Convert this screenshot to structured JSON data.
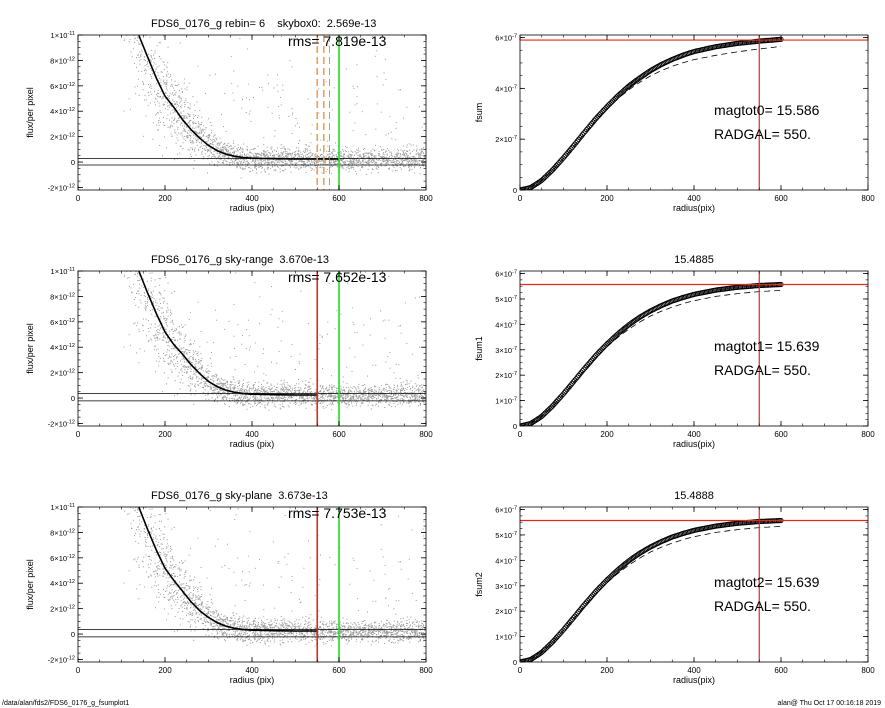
{
  "colors": {
    "scatter": "#9a9a9a",
    "profile": "#000000",
    "curve": "#000000",
    "marker_red": "#e0271d",
    "marker_green": "#22dd22",
    "marker_orange": "#f0a050",
    "marker_gray": "#8c8c8c"
  },
  "footer": {
    "left": "/data/alan/fds2/FDS6_0176_g_fsumplot1",
    "right": "alan@  Thu Oct 17 00:16:18 2019"
  },
  "chart_data": [
    {
      "type": "scatter",
      "title": "FDS6_0176_g rebin= 6    skybox0:  2.569e-13",
      "annotations": [
        "rms= 7.819e-13"
      ],
      "xlabel": "radius (pix)",
      "ylabel": "flux/per pixel",
      "xlim": [
        0,
        800
      ],
      "ylim": [
        -2.2e-12,
        1e-11
      ],
      "xticks": [
        0,
        200,
        400,
        600,
        800
      ],
      "xtick_labels": [
        "0",
        "200",
        "400",
        "600",
        "800"
      ],
      "yticks": [
        -2e-12,
        0,
        2e-12,
        4e-12,
        6e-12,
        8e-12,
        1e-11
      ],
      "ytick_labels": [
        [
          "-2×10",
          "-12"
        ],
        [
          "0",
          ""
        ],
        [
          "2×10",
          "-12"
        ],
        [
          "4×10",
          "-12"
        ],
        [
          "6×10",
          "-12"
        ],
        [
          "8×10",
          "-12"
        ],
        [
          "1×10",
          "-11"
        ]
      ],
      "hlines": [
        2.8e-13,
        -2.3e-13
      ],
      "vlines": [
        {
          "x": 550,
          "color": "marker_orange",
          "dash": true
        },
        {
          "x": 565,
          "color": "marker_orange",
          "dash": true
        },
        {
          "x": 578,
          "color": "marker_gray",
          "dash": true
        },
        {
          "x": 600,
          "color": "marker_green",
          "dash": false
        }
      ],
      "profile": {
        "x": [
          140,
          160,
          180,
          200,
          220,
          240,
          260,
          280,
          300,
          320,
          340,
          360,
          380,
          400,
          450,
          500,
          550,
          600
        ],
        "y": [
          1e-11,
          8.2e-12,
          6.6e-12,
          5.2e-12,
          4.3e-12,
          3.4e-12,
          2.6e-12,
          1.9e-12,
          1.3e-12,
          9e-13,
          6.2e-13,
          4.5e-13,
          3.5e-13,
          3e-13,
          2.6e-13,
          2.4e-13,
          2.4e-13,
          2.4e-13
        ]
      },
      "grid": false,
      "legend": "none"
    },
    {
      "type": "line",
      "title": "",
      "annotations": [
        "magtot0=  15.586",
        "RADGAL=    550."
      ],
      "xlabel": "radius(pix)",
      "ylabel": "fsum",
      "xlim": [
        0,
        800
      ],
      "ylim": [
        0,
        6.1e-07
      ],
      "xticks": [
        0,
        200,
        400,
        600,
        800
      ],
      "xtick_labels": [
        "0",
        "200",
        "400",
        "600",
        "800"
      ],
      "yticks": [
        0,
        2e-07,
        4e-07,
        6e-07
      ],
      "ytick_labels": [
        [
          "0",
          ""
        ],
        [
          "2×10",
          "-7"
        ],
        [
          "4×10",
          "-7"
        ],
        [
          "6×10",
          "-7"
        ]
      ],
      "asymptote": 5.9e-07,
      "hline": 5.9e-07,
      "vline": 550,
      "x": [
        0,
        25,
        50,
        75,
        100,
        125,
        150,
        175,
        200,
        225,
        250,
        275,
        300,
        325,
        350,
        375,
        400,
        450,
        500,
        550,
        600
      ],
      "y": [
        0,
        1e-08,
        3.8e-08,
        7.9e-08,
        1.27e-07,
        1.78e-07,
        2.31e-07,
        2.82e-07,
        3.28e-07,
        3.71e-07,
        4.09e-07,
        4.41e-07,
        4.7e-07,
        4.94e-07,
        5.14e-07,
        5.31e-07,
        5.45e-07,
        5.64e-07,
        5.77e-07,
        5.86e-07,
        5.93e-07
      ],
      "dashed_y": [
        0,
        1e-08,
        3.8e-08,
        7.8e-08,
        1.25e-07,
        1.75e-07,
        2.26e-07,
        2.75e-07,
        3.19e-07,
        3.59e-07,
        3.94e-07,
        4.24e-07,
        4.49e-07,
        4.7e-07,
        4.87e-07,
        5.01e-07,
        5.13e-07,
        5.3e-07,
        5.44e-07,
        5.55e-07,
        5.65e-07
      ],
      "grid": false,
      "legend": "none"
    },
    {
      "type": "scatter",
      "title": "FDS6_0176_g sky-range  3.670e-13",
      "annotations": [
        "rms= 7.652e-13"
      ],
      "xlabel": "radius (pix)",
      "ylabel": "flux/per pixel",
      "xlim": [
        0,
        800
      ],
      "ylim": [
        -2.2e-12,
        1e-11
      ],
      "xticks": [
        0,
        200,
        400,
        600,
        800
      ],
      "xtick_labels": [
        "0",
        "200",
        "400",
        "600",
        "800"
      ],
      "yticks": [
        -2e-12,
        0,
        2e-12,
        4e-12,
        6e-12,
        8e-12,
        1e-11
      ],
      "ytick_labels": [
        [
          "-2×10",
          "-12"
        ],
        [
          "0",
          ""
        ],
        [
          "2×10",
          "-12"
        ],
        [
          "4×10",
          "-12"
        ],
        [
          "6×10",
          "-12"
        ],
        [
          "8×10",
          "-12"
        ],
        [
          "1×10",
          "-11"
        ]
      ],
      "hlines": [
        3.7e-13,
        -2.2e-13
      ],
      "vlines": [
        {
          "x": 550,
          "color": "marker_red",
          "dash": false
        },
        {
          "x": 600,
          "color": "marker_green",
          "dash": false
        }
      ],
      "profile": {
        "x": [
          140,
          160,
          180,
          200,
          220,
          240,
          260,
          280,
          300,
          320,
          340,
          360,
          380,
          400,
          450,
          500,
          550
        ],
        "y": [
          1e-11,
          8.2e-12,
          6.6e-12,
          5.2e-12,
          4.3e-12,
          3.4e-12,
          2.6e-12,
          1.9e-12,
          1.3e-12,
          9e-13,
          6.2e-13,
          4.5e-13,
          3.5e-13,
          3e-13,
          2.6e-13,
          2.4e-13,
          2.4e-13
        ]
      },
      "grid": false,
      "legend": "none"
    },
    {
      "type": "line",
      "title": "15.4885",
      "annotations": [
        "magtot1=  15.639",
        "RADGAL=    550."
      ],
      "xlabel": "radius(pix)",
      "ylabel": "fsum1",
      "xlim": [
        0,
        800
      ],
      "ylim": [
        0,
        6.1e-07
      ],
      "xticks": [
        0,
        200,
        400,
        600,
        800
      ],
      "xtick_labels": [
        "0",
        "200",
        "400",
        "600",
        "800"
      ],
      "yticks": [
        0,
        1e-07,
        2e-07,
        3e-07,
        4e-07,
        5e-07,
        6e-07
      ],
      "ytick_labels": [
        [
          "0",
          ""
        ],
        [
          "1×10",
          "-7"
        ],
        [
          "2×10",
          "-7"
        ],
        [
          "3×10",
          "-7"
        ],
        [
          "4×10",
          "-7"
        ],
        [
          "5×10",
          "-7"
        ],
        [
          "6×10",
          "-7"
        ]
      ],
      "asymptote": 5.57e-07,
      "hline": 5.57e-07,
      "vline": 550,
      "x": [
        0,
        25,
        50,
        75,
        100,
        125,
        150,
        175,
        200,
        225,
        250,
        275,
        300,
        325,
        350,
        375,
        400,
        450,
        500,
        550,
        600
      ],
      "y": [
        0,
        1e-08,
        3.8e-08,
        7.9e-08,
        1.27e-07,
        1.78e-07,
        2.3e-07,
        2.79e-07,
        3.23e-07,
        3.63e-07,
        3.98e-07,
        4.28e-07,
        4.53e-07,
        4.74e-07,
        4.92e-07,
        5.06e-07,
        5.18e-07,
        5.35e-07,
        5.46e-07,
        5.53e-07,
        5.57e-07
      ],
      "dashed_y": [
        0,
        1e-08,
        3.8e-08,
        7.8e-08,
        1.25e-07,
        1.74e-07,
        2.24e-07,
        2.7e-07,
        3.12e-07,
        3.49e-07,
        3.81e-07,
        4.09e-07,
        4.33e-07,
        4.52e-07,
        4.68e-07,
        4.82e-07,
        4.93e-07,
        5.1e-07,
        5.21e-07,
        5.29e-07,
        5.34e-07
      ],
      "grid": false,
      "legend": "none"
    },
    {
      "type": "scatter",
      "title": "FDS6_0176_g sky-plane  3.673e-13",
      "annotations": [
        "rms= 7.753e-13"
      ],
      "xlabel": "radius (pix)",
      "ylabel": "flux/per pixel",
      "xlim": [
        0,
        800
      ],
      "ylim": [
        -2.2e-12,
        1e-11
      ],
      "xticks": [
        0,
        200,
        400,
        600,
        800
      ],
      "xtick_labels": [
        "0",
        "200",
        "400",
        "600",
        "800"
      ],
      "yticks": [
        -2e-12,
        0,
        2e-12,
        4e-12,
        6e-12,
        8e-12,
        1e-11
      ],
      "ytick_labels": [
        [
          "-2×10",
          "-12"
        ],
        [
          "0",
          ""
        ],
        [
          "2×10",
          "-12"
        ],
        [
          "4×10",
          "-12"
        ],
        [
          "6×10",
          "-12"
        ],
        [
          "8×10",
          "-12"
        ],
        [
          "1×10",
          "-11"
        ]
      ],
      "hlines": [
        3.7e-13,
        -2.2e-13
      ],
      "vlines": [
        {
          "x": 550,
          "color": "marker_red",
          "dash": false
        },
        {
          "x": 600,
          "color": "marker_green",
          "dash": false
        }
      ],
      "profile": {
        "x": [
          140,
          160,
          180,
          200,
          220,
          240,
          260,
          280,
          300,
          320,
          340,
          360,
          380,
          400,
          450,
          500,
          550
        ],
        "y": [
          1e-11,
          8.2e-12,
          6.6e-12,
          5.2e-12,
          4.3e-12,
          3.4e-12,
          2.6e-12,
          1.9e-12,
          1.3e-12,
          9e-13,
          6.2e-13,
          4.5e-13,
          3.5e-13,
          3e-13,
          2.6e-13,
          2.4e-13,
          2.4e-13
        ]
      },
      "grid": false,
      "legend": "none"
    },
    {
      "type": "line",
      "title": "15.4888",
      "annotations": [
        "magtot2=  15.639",
        "RADGAL=    550."
      ],
      "xlabel": "radius(pix)",
      "ylabel": "fsum2",
      "xlim": [
        0,
        800
      ],
      "ylim": [
        0,
        6.1e-07
      ],
      "xticks": [
        0,
        200,
        400,
        600,
        800
      ],
      "xtick_labels": [
        "0",
        "200",
        "400",
        "600",
        "800"
      ],
      "yticks": [
        0,
        1e-07,
        2e-07,
        3e-07,
        4e-07,
        5e-07,
        6e-07
      ],
      "ytick_labels": [
        [
          "0",
          ""
        ],
        [
          "1×10",
          "-7"
        ],
        [
          "2×10",
          "-7"
        ],
        [
          "3×10",
          "-7"
        ],
        [
          "4×10",
          "-7"
        ],
        [
          "5×10",
          "-7"
        ],
        [
          "6×10",
          "-7"
        ]
      ],
      "asymptote": 5.57e-07,
      "hline": 5.57e-07,
      "vline": 550,
      "x": [
        0,
        25,
        50,
        75,
        100,
        125,
        150,
        175,
        200,
        225,
        250,
        275,
        300,
        325,
        350,
        375,
        400,
        450,
        500,
        550,
        600
      ],
      "y": [
        0,
        1e-08,
        3.8e-08,
        7.9e-08,
        1.27e-07,
        1.78e-07,
        2.3e-07,
        2.79e-07,
        3.23e-07,
        3.63e-07,
        3.98e-07,
        4.28e-07,
        4.53e-07,
        4.74e-07,
        4.92e-07,
        5.06e-07,
        5.18e-07,
        5.35e-07,
        5.46e-07,
        5.53e-07,
        5.57e-07
      ],
      "dashed_y": [
        0,
        1e-08,
        3.8e-08,
        7.8e-08,
        1.25e-07,
        1.74e-07,
        2.24e-07,
        2.7e-07,
        3.12e-07,
        3.49e-07,
        3.81e-07,
        4.09e-07,
        4.33e-07,
        4.52e-07,
        4.68e-07,
        4.82e-07,
        4.93e-07,
        5.1e-07,
        5.21e-07,
        5.29e-07,
        5.34e-07
      ],
      "grid": false,
      "legend": "none"
    }
  ]
}
